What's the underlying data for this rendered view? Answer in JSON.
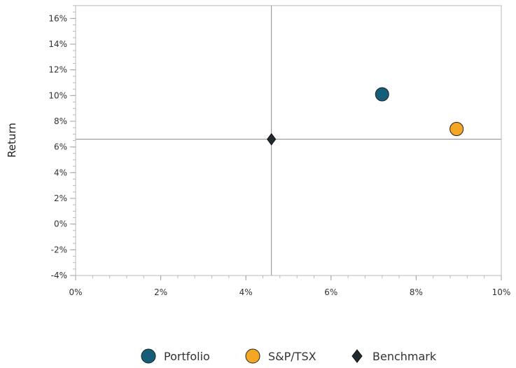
{
  "chart_data": {
    "type": "scatter",
    "title": "",
    "xlabel": "",
    "ylabel": "Return",
    "xlim": [
      0,
      10
    ],
    "ylim": [
      -4,
      17
    ],
    "x_ticks": [
      {
        "value": 0,
        "label": "0%"
      },
      {
        "value": 2,
        "label": "2%"
      },
      {
        "value": 4,
        "label": "4%"
      },
      {
        "value": 6,
        "label": "6%"
      },
      {
        "value": 8,
        "label": "8%"
      },
      {
        "value": 10,
        "label": "10%"
      }
    ],
    "y_ticks": [
      {
        "value": -4,
        "label": "-4%"
      },
      {
        "value": -2,
        "label": "-2%"
      },
      {
        "value": 0,
        "label": "0%"
      },
      {
        "value": 2,
        "label": "2%"
      },
      {
        "value": 4,
        "label": "4%"
      },
      {
        "value": 6,
        "label": "6%"
      },
      {
        "value": 8,
        "label": "8%"
      },
      {
        "value": 10,
        "label": "10%"
      },
      {
        "value": 12,
        "label": "12%"
      },
      {
        "value": 14,
        "label": "14%"
      },
      {
        "value": 16,
        "label": "16%"
      }
    ],
    "grid": false,
    "reference_lines": {
      "x": 4.6,
      "y": 6.6
    },
    "legend_position": "bottom",
    "series": [
      {
        "name": "Portfolio",
        "marker": "circle",
        "color": "#155e7a",
        "points": [
          {
            "x": 7.2,
            "y": 10.1
          }
        ]
      },
      {
        "name": "S&P/TSX",
        "marker": "circle",
        "color": "#f5a623",
        "points": [
          {
            "x": 8.95,
            "y": 7.4
          }
        ]
      },
      {
        "name": "Benchmark",
        "marker": "diamond",
        "color": "#1f2a30",
        "points": [
          {
            "x": 4.6,
            "y": 6.6
          }
        ]
      }
    ]
  }
}
